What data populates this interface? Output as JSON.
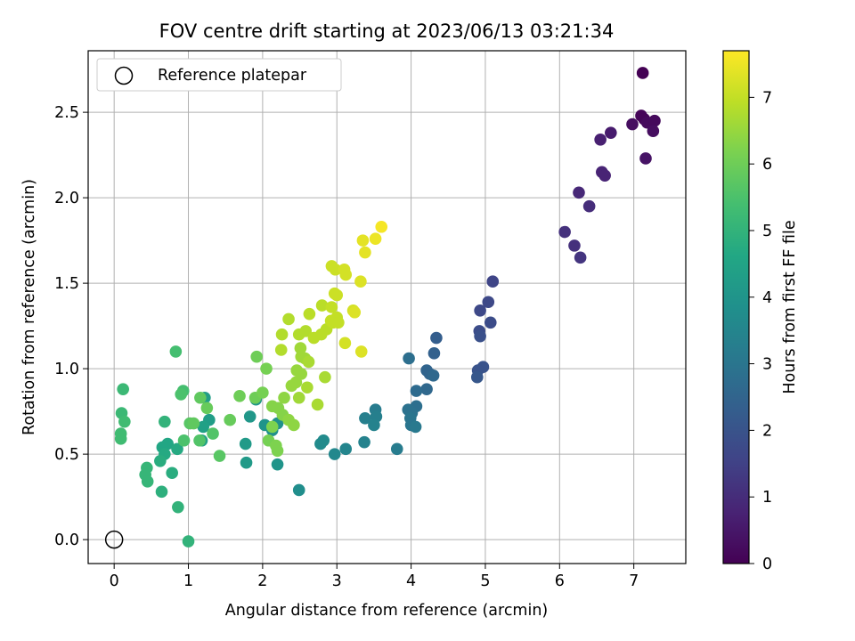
{
  "chart_data": {
    "type": "scatter",
    "title": "FOV centre drift starting at 2023/06/13 03:21:34",
    "xlabel": "Angular distance from reference (arcmin)",
    "ylabel": "Rotation from reference (arcmin)",
    "xlim": [
      -0.35,
      7.7
    ],
    "ylim": [
      -0.14,
      2.86
    ],
    "xticks": [
      "0",
      "1",
      "2",
      "3",
      "4",
      "5",
      "6",
      "7"
    ],
    "yticks": [
      "0.0",
      "0.5",
      "1.0",
      "1.5",
      "2.0",
      "2.5"
    ],
    "grid": true,
    "legend": {
      "location": "upper left",
      "label": "Reference platepar"
    },
    "reference_point": {
      "x": 0,
      "y": 0
    },
    "colorbar": {
      "label": "Hours from first FF file",
      "ticks": [
        "0",
        "1",
        "2",
        "3",
        "4",
        "5",
        "6",
        "7"
      ],
      "range": [
        0,
        7.7
      ],
      "colormap": "viridis"
    },
    "points": [
      {
        "x": 7.12,
        "y": 2.73,
        "h": 0.0
      },
      {
        "x": 7.1,
        "y": 2.48,
        "h": 0.1
      },
      {
        "x": 7.14,
        "y": 2.46,
        "h": 0.1
      },
      {
        "x": 7.18,
        "y": 2.44,
        "h": 0.2
      },
      {
        "x": 7.28,
        "y": 2.45,
        "h": 0.2
      },
      {
        "x": 6.98,
        "y": 2.43,
        "h": 0.3
      },
      {
        "x": 7.26,
        "y": 2.39,
        "h": 0.3
      },
      {
        "x": 7.16,
        "y": 2.23,
        "h": 0.4
      },
      {
        "x": 6.69,
        "y": 2.38,
        "h": 0.6
      },
      {
        "x": 6.55,
        "y": 2.34,
        "h": 0.7
      },
      {
        "x": 6.57,
        "y": 2.15,
        "h": 0.8
      },
      {
        "x": 6.61,
        "y": 2.13,
        "h": 0.8
      },
      {
        "x": 6.26,
        "y": 2.03,
        "h": 0.9
      },
      {
        "x": 6.4,
        "y": 1.95,
        "h": 1.0
      },
      {
        "x": 6.07,
        "y": 1.8,
        "h": 1.1
      },
      {
        "x": 6.2,
        "y": 1.72,
        "h": 1.1
      },
      {
        "x": 6.28,
        "y": 1.65,
        "h": 1.2
      },
      {
        "x": 5.1,
        "y": 1.51,
        "h": 1.6
      },
      {
        "x": 5.04,
        "y": 1.39,
        "h": 1.7
      },
      {
        "x": 4.93,
        "y": 1.34,
        "h": 1.7
      },
      {
        "x": 5.07,
        "y": 1.27,
        "h": 1.8
      },
      {
        "x": 4.92,
        "y": 1.22,
        "h": 1.8
      },
      {
        "x": 4.93,
        "y": 1.19,
        "h": 1.9
      },
      {
        "x": 4.97,
        "y": 1.01,
        "h": 2.0
      },
      {
        "x": 4.9,
        "y": 0.99,
        "h": 2.0
      },
      {
        "x": 4.89,
        "y": 0.95,
        "h": 2.1
      },
      {
        "x": 4.34,
        "y": 1.18,
        "h": 2.3
      },
      {
        "x": 4.31,
        "y": 1.09,
        "h": 2.4
      },
      {
        "x": 4.21,
        "y": 0.99,
        "h": 2.5
      },
      {
        "x": 4.25,
        "y": 0.97,
        "h": 2.5
      },
      {
        "x": 4.3,
        "y": 0.96,
        "h": 2.6
      },
      {
        "x": 4.21,
        "y": 0.88,
        "h": 2.6
      },
      {
        "x": 4.07,
        "y": 0.87,
        "h": 2.7
      },
      {
        "x": 3.97,
        "y": 1.06,
        "h": 2.8
      },
      {
        "x": 4.07,
        "y": 0.78,
        "h": 2.8
      },
      {
        "x": 3.96,
        "y": 0.76,
        "h": 2.9
      },
      {
        "x": 4.01,
        "y": 0.74,
        "h": 2.9
      },
      {
        "x": 3.99,
        "y": 0.71,
        "h": 3.0
      },
      {
        "x": 4.0,
        "y": 0.67,
        "h": 3.0
      },
      {
        "x": 4.06,
        "y": 0.66,
        "h": 3.1
      },
      {
        "x": 3.81,
        "y": 0.53,
        "h": 3.2
      },
      {
        "x": 3.52,
        "y": 0.76,
        "h": 3.2
      },
      {
        "x": 3.53,
        "y": 0.72,
        "h": 3.3
      },
      {
        "x": 3.38,
        "y": 0.71,
        "h": 3.3
      },
      {
        "x": 3.5,
        "y": 0.67,
        "h": 3.4
      },
      {
        "x": 3.37,
        "y": 0.57,
        "h": 3.4
      },
      {
        "x": 3.12,
        "y": 0.53,
        "h": 3.5
      },
      {
        "x": 2.97,
        "y": 0.5,
        "h": 3.6
      },
      {
        "x": 2.82,
        "y": 0.58,
        "h": 3.7
      },
      {
        "x": 2.78,
        "y": 0.56,
        "h": 3.7
      },
      {
        "x": 2.49,
        "y": 0.29,
        "h": 3.8
      },
      {
        "x": 2.2,
        "y": 0.68,
        "h": 3.9
      },
      {
        "x": 2.13,
        "y": 0.64,
        "h": 3.9
      },
      {
        "x": 2.03,
        "y": 0.67,
        "h": 4.0
      },
      {
        "x": 2.2,
        "y": 0.44,
        "h": 4.0
      },
      {
        "x": 1.91,
        "y": 0.82,
        "h": 4.1
      },
      {
        "x": 1.83,
        "y": 0.72,
        "h": 4.1
      },
      {
        "x": 1.77,
        "y": 0.56,
        "h": 4.2
      },
      {
        "x": 1.78,
        "y": 0.45,
        "h": 4.2
      },
      {
        "x": 1.22,
        "y": 0.83,
        "h": 4.3
      },
      {
        "x": 1.28,
        "y": 0.7,
        "h": 4.3
      },
      {
        "x": 1.2,
        "y": 0.66,
        "h": 4.4
      },
      {
        "x": 1.18,
        "y": 0.58,
        "h": 4.4
      },
      {
        "x": 0.65,
        "y": 0.54,
        "h": 4.6
      },
      {
        "x": 0.72,
        "y": 0.56,
        "h": 4.6
      },
      {
        "x": 0.85,
        "y": 0.53,
        "h": 4.7
      },
      {
        "x": 0.68,
        "y": 0.5,
        "h": 4.7
      },
      {
        "x": 0.62,
        "y": 0.46,
        "h": 4.8
      },
      {
        "x": 0.78,
        "y": 0.39,
        "h": 4.8
      },
      {
        "x": 0.64,
        "y": 0.28,
        "h": 4.9
      },
      {
        "x": 0.86,
        "y": 0.19,
        "h": 5.0
      },
      {
        "x": 1.0,
        "y": -0.01,
        "h": 5.0
      },
      {
        "x": 0.68,
        "y": 0.69,
        "h": 5.0
      },
      {
        "x": 0.44,
        "y": 0.42,
        "h": 5.1
      },
      {
        "x": 0.42,
        "y": 0.38,
        "h": 5.1
      },
      {
        "x": 0.45,
        "y": 0.34,
        "h": 5.1
      },
      {
        "x": 0.12,
        "y": 0.88,
        "h": 5.2
      },
      {
        "x": 0.1,
        "y": 0.74,
        "h": 5.2
      },
      {
        "x": 0.14,
        "y": 0.69,
        "h": 5.3
      },
      {
        "x": 0.09,
        "y": 0.62,
        "h": 5.3
      },
      {
        "x": 0.09,
        "y": 0.59,
        "h": 5.3
      },
      {
        "x": 0.83,
        "y": 1.1,
        "h": 5.4
      },
      {
        "x": 0.93,
        "y": 0.87,
        "h": 5.4
      },
      {
        "x": 0.9,
        "y": 0.85,
        "h": 5.5
      },
      {
        "x": 0.94,
        "y": 0.58,
        "h": 5.5
      },
      {
        "x": 1.15,
        "y": 0.58,
        "h": 5.6
      },
      {
        "x": 1.33,
        "y": 0.62,
        "h": 5.6
      },
      {
        "x": 1.42,
        "y": 0.49,
        "h": 5.7
      },
      {
        "x": 1.02,
        "y": 0.68,
        "h": 5.7
      },
      {
        "x": 1.07,
        "y": 0.68,
        "h": 5.8
      },
      {
        "x": 1.16,
        "y": 0.83,
        "h": 5.8
      },
      {
        "x": 1.25,
        "y": 0.77,
        "h": 5.9
      },
      {
        "x": 1.56,
        "y": 0.7,
        "h": 5.9
      },
      {
        "x": 1.69,
        "y": 0.84,
        "h": 6.0
      },
      {
        "x": 1.9,
        "y": 0.83,
        "h": 6.0
      },
      {
        "x": 1.92,
        "y": 1.07,
        "h": 6.0
      },
      {
        "x": 2.0,
        "y": 0.86,
        "h": 6.1
      },
      {
        "x": 2.05,
        "y": 1.0,
        "h": 6.1
      },
      {
        "x": 2.08,
        "y": 0.58,
        "h": 6.1
      },
      {
        "x": 2.18,
        "y": 0.55,
        "h": 6.2
      },
      {
        "x": 2.2,
        "y": 0.52,
        "h": 6.2
      },
      {
        "x": 2.13,
        "y": 0.66,
        "h": 6.2
      },
      {
        "x": 2.13,
        "y": 0.78,
        "h": 6.3
      },
      {
        "x": 2.21,
        "y": 0.77,
        "h": 6.3
      },
      {
        "x": 2.27,
        "y": 0.73,
        "h": 6.3
      },
      {
        "x": 2.29,
        "y": 0.83,
        "h": 6.4
      },
      {
        "x": 2.35,
        "y": 0.7,
        "h": 6.4
      },
      {
        "x": 2.42,
        "y": 0.67,
        "h": 6.4
      },
      {
        "x": 2.39,
        "y": 0.9,
        "h": 6.5
      },
      {
        "x": 2.45,
        "y": 0.92,
        "h": 6.5
      },
      {
        "x": 2.46,
        "y": 0.99,
        "h": 6.5
      },
      {
        "x": 2.52,
        "y": 0.97,
        "h": 6.5
      },
      {
        "x": 2.49,
        "y": 0.83,
        "h": 6.6
      },
      {
        "x": 2.51,
        "y": 1.12,
        "h": 6.6
      },
      {
        "x": 2.52,
        "y": 1.07,
        "h": 6.6
      },
      {
        "x": 2.57,
        "y": 1.06,
        "h": 6.6
      },
      {
        "x": 2.6,
        "y": 0.89,
        "h": 6.7
      },
      {
        "x": 2.62,
        "y": 1.04,
        "h": 6.7
      },
      {
        "x": 2.74,
        "y": 0.79,
        "h": 6.7
      },
      {
        "x": 2.84,
        "y": 0.95,
        "h": 6.7
      },
      {
        "x": 2.25,
        "y": 1.11,
        "h": 6.8
      },
      {
        "x": 2.26,
        "y": 1.2,
        "h": 6.8
      },
      {
        "x": 2.35,
        "y": 1.29,
        "h": 6.8
      },
      {
        "x": 2.49,
        "y": 1.2,
        "h": 6.8
      },
      {
        "x": 2.58,
        "y": 1.22,
        "h": 6.8
      },
      {
        "x": 2.63,
        "y": 1.32,
        "h": 6.9
      },
      {
        "x": 2.69,
        "y": 1.18,
        "h": 6.9
      },
      {
        "x": 2.79,
        "y": 1.2,
        "h": 6.9
      },
      {
        "x": 2.8,
        "y": 1.37,
        "h": 6.9
      },
      {
        "x": 2.86,
        "y": 1.23,
        "h": 6.9
      },
      {
        "x": 2.92,
        "y": 1.28,
        "h": 7.0
      },
      {
        "x": 2.95,
        "y": 1.27,
        "h": 7.0
      },
      {
        "x": 2.93,
        "y": 1.36,
        "h": 7.0
      },
      {
        "x": 3.0,
        "y": 1.3,
        "h": 7.0
      },
      {
        "x": 3.02,
        "y": 1.27,
        "h": 7.0
      },
      {
        "x": 2.97,
        "y": 1.44,
        "h": 7.1
      },
      {
        "x": 3.0,
        "y": 1.43,
        "h": 7.1
      },
      {
        "x": 2.93,
        "y": 1.6,
        "h": 7.1
      },
      {
        "x": 2.98,
        "y": 1.58,
        "h": 7.1
      },
      {
        "x": 3.1,
        "y": 1.58,
        "h": 7.2
      },
      {
        "x": 3.12,
        "y": 1.55,
        "h": 7.2
      },
      {
        "x": 3.11,
        "y": 1.15,
        "h": 7.2
      },
      {
        "x": 3.22,
        "y": 1.34,
        "h": 7.2
      },
      {
        "x": 3.24,
        "y": 1.33,
        "h": 7.3
      },
      {
        "x": 3.32,
        "y": 1.51,
        "h": 7.3
      },
      {
        "x": 3.33,
        "y": 1.1,
        "h": 7.3
      },
      {
        "x": 3.35,
        "y": 1.75,
        "h": 7.4
      },
      {
        "x": 3.38,
        "y": 1.68,
        "h": 7.4
      },
      {
        "x": 3.52,
        "y": 1.76,
        "h": 7.5
      },
      {
        "x": 3.6,
        "y": 1.83,
        "h": 7.6
      }
    ]
  }
}
